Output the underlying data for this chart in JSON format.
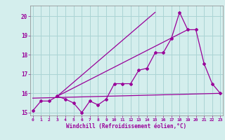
{
  "xlabel": "Windchill (Refroidissement éolien,°C)",
  "bg_color": "#d4eeed",
  "grid_color": "#aad4d4",
  "line_color": "#990099",
  "spine_color": "#888888",
  "x": [
    0,
    1,
    2,
    3,
    4,
    5,
    6,
    7,
    8,
    9,
    10,
    11,
    12,
    13,
    14,
    15,
    16,
    17,
    18,
    19,
    20,
    21,
    22,
    23
  ],
  "y_main": [
    15.1,
    15.6,
    15.6,
    15.85,
    15.7,
    15.5,
    15.0,
    15.6,
    15.4,
    15.7,
    16.5,
    16.5,
    16.5,
    17.2,
    17.3,
    18.1,
    18.1,
    18.85,
    20.2,
    19.3,
    19.3,
    17.55,
    16.5,
    16.0
  ],
  "trend1_x": [
    0,
    23
  ],
  "trend1_y": [
    15.75,
    16.0
  ],
  "trend2_x": [
    3,
    19
  ],
  "trend2_y": [
    15.85,
    19.3
  ],
  "trend3_x": [
    3,
    15
  ],
  "trend3_y": [
    15.85,
    20.2
  ],
  "ylim": [
    14.85,
    20.55
  ],
  "xlim": [
    -0.3,
    23.3
  ],
  "yticks": [
    15,
    16,
    17,
    18,
    19,
    20
  ],
  "xticks": [
    0,
    1,
    2,
    3,
    4,
    5,
    6,
    7,
    8,
    9,
    10,
    11,
    12,
    13,
    14,
    15,
    16,
    17,
    18,
    19,
    20,
    21,
    22,
    23
  ]
}
